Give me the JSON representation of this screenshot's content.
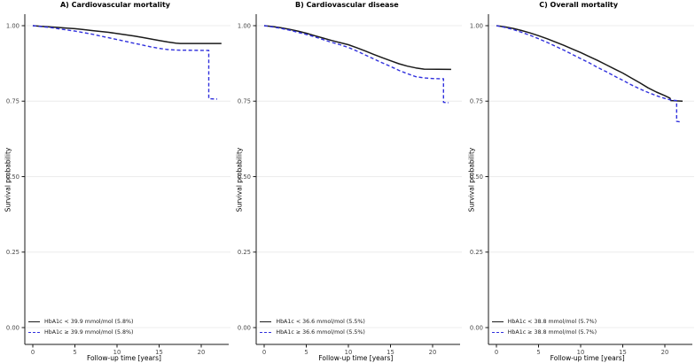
{
  "figure_name": "Kaplan-Meier survival curves by HbA1c group",
  "colors": {
    "low_group_line": "#1a1a1a",
    "high_group_line": "#3030dd",
    "gridline": "#ececec",
    "axis_line": "#1a1a1a",
    "tick_text": "#4a4a4a",
    "background": "#ffffff"
  },
  "chart_data": [
    {
      "type": "line",
      "title": "A) Cardiovascular mortality",
      "xlabel": "Follow-up time [years]",
      "ylabel": "Survival probability",
      "xlim": [
        -1,
        23.3
      ],
      "ylim": [
        -0.055,
        1.035
      ],
      "xticks": [
        0,
        5,
        10,
        15,
        20
      ],
      "xtick_labels": [
        "0",
        "5",
        "10",
        "15",
        "20"
      ],
      "yticks": [
        0,
        0.25,
        0.5,
        0.75,
        1
      ],
      "ytick_labels": [
        "0.00",
        "0.25",
        "0.50",
        "0.75",
        "1.00"
      ],
      "grid": "horizontal-only",
      "legend_position": "bottom-left",
      "series": [
        {
          "name": "HbA1c < 39.9 mmol/mol (5.8%)",
          "color": "#1a1a1a",
          "style": "solid",
          "points": [
            [
              0,
              1.0
            ],
            [
              1,
              0.998
            ],
            [
              2,
              0.996
            ],
            [
              3,
              0.994
            ],
            [
              4,
              0.992
            ],
            [
              5,
              0.99
            ],
            [
              6,
              0.987
            ],
            [
              7,
              0.984
            ],
            [
              8,
              0.981
            ],
            [
              9,
              0.978
            ],
            [
              10,
              0.974
            ],
            [
              11,
              0.97
            ],
            [
              12,
              0.966
            ],
            [
              13,
              0.961
            ],
            [
              14,
              0.956
            ],
            [
              15,
              0.951
            ],
            [
              16,
              0.946
            ],
            [
              17,
              0.942
            ],
            [
              17.5,
              0.941
            ],
            [
              22.4,
              0.941
            ]
          ]
        },
        {
          "name": "HbA1c ≥ 39.9 mmol/mol (5.8%)",
          "color": "#3030dd",
          "style": "dashed",
          "points": [
            [
              0,
              1.0
            ],
            [
              1,
              0.997
            ],
            [
              2,
              0.994
            ],
            [
              3,
              0.99
            ],
            [
              4,
              0.986
            ],
            [
              5,
              0.982
            ],
            [
              6,
              0.977
            ],
            [
              7,
              0.972
            ],
            [
              8,
              0.966
            ],
            [
              9,
              0.96
            ],
            [
              10,
              0.954
            ],
            [
              11,
              0.948
            ],
            [
              12,
              0.942
            ],
            [
              13,
              0.936
            ],
            [
              14,
              0.93
            ],
            [
              15,
              0.925
            ],
            [
              16,
              0.921
            ],
            [
              17,
              0.919
            ],
            [
              20.9,
              0.918
            ],
            [
              20.9,
              0.758
            ],
            [
              21.9,
              0.757
            ]
          ]
        }
      ]
    },
    {
      "type": "line",
      "title": "B) Cardiovascular disease",
      "xlabel": "Follow-up time [years]",
      "ylabel": "Survival probability",
      "xlim": [
        -1,
        23.3
      ],
      "ylim": [
        -0.055,
        1.035
      ],
      "xticks": [
        0,
        5,
        10,
        15,
        20
      ],
      "xtick_labels": [
        "0",
        "5",
        "10",
        "15",
        "20"
      ],
      "yticks": [
        0,
        0.25,
        0.5,
        0.75,
        1
      ],
      "ytick_labels": [
        "0.00",
        "0.25",
        "0.50",
        "0.75",
        "1.00"
      ],
      "grid": "horizontal-only",
      "legend_position": "bottom-left",
      "series": [
        {
          "name": "HbA1c < 36.6 mmol/mol (5.5%)",
          "color": "#1a1a1a",
          "style": "solid",
          "points": [
            [
              0,
              1.0
            ],
            [
              1,
              0.997
            ],
            [
              2,
              0.993
            ],
            [
              3,
              0.988
            ],
            [
              4,
              0.982
            ],
            [
              5,
              0.975
            ],
            [
              6,
              0.967
            ],
            [
              7,
              0.959
            ],
            [
              8,
              0.951
            ],
            [
              9,
              0.944
            ],
            [
              10,
              0.937
            ],
            [
              11,
              0.927
            ],
            [
              12,
              0.916
            ],
            [
              13,
              0.905
            ],
            [
              14,
              0.894
            ],
            [
              15,
              0.884
            ],
            [
              16,
              0.874
            ],
            [
              17,
              0.866
            ],
            [
              18,
              0.86
            ],
            [
              19,
              0.856
            ],
            [
              22.2,
              0.855
            ]
          ]
        },
        {
          "name": "HbA1c ≥ 36.6 mmol/mol (5.5%)",
          "color": "#3030dd",
          "style": "dashed",
          "points": [
            [
              0,
              1.0
            ],
            [
              1,
              0.996
            ],
            [
              2,
              0.991
            ],
            [
              3,
              0.985
            ],
            [
              4,
              0.978
            ],
            [
              5,
              0.971
            ],
            [
              6,
              0.963
            ],
            [
              7,
              0.954
            ],
            [
              8,
              0.945
            ],
            [
              9,
              0.937
            ],
            [
              10,
              0.928
            ],
            [
              11,
              0.916
            ],
            [
              12,
              0.903
            ],
            [
              13,
              0.89
            ],
            [
              14,
              0.877
            ],
            [
              15,
              0.865
            ],
            [
              16,
              0.852
            ],
            [
              17,
              0.841
            ],
            [
              18,
              0.831
            ],
            [
              19,
              0.827
            ],
            [
              20,
              0.825
            ],
            [
              21.3,
              0.824
            ],
            [
              21.3,
              0.746
            ],
            [
              21.9,
              0.745
            ]
          ]
        }
      ]
    },
    {
      "type": "line",
      "title": "C) Overall mortality",
      "xlabel": "Follow-up time [years]",
      "ylabel": "Survival probability",
      "xlim": [
        -1,
        23.3
      ],
      "ylim": [
        -0.055,
        1.035
      ],
      "xticks": [
        0,
        5,
        10,
        15,
        20
      ],
      "xtick_labels": [
        "0",
        "5",
        "10",
        "15",
        "20"
      ],
      "yticks": [
        0,
        0.25,
        0.5,
        0.75,
        1
      ],
      "ytick_labels": [
        "0.00",
        "0.25",
        "0.50",
        "0.75",
        "1.00"
      ],
      "grid": "horizontal-only",
      "legend_position": "bottom-left",
      "series": [
        {
          "name": "HbA1c < 38.8 mmol/mol (5.7%)",
          "color": "#1a1a1a",
          "style": "solid",
          "points": [
            [
              0,
              1.0
            ],
            [
              1,
              0.996
            ],
            [
              2,
              0.991
            ],
            [
              3,
              0.984
            ],
            [
              4,
              0.976
            ],
            [
              5,
              0.967
            ],
            [
              6,
              0.957
            ],
            [
              7,
              0.946
            ],
            [
              8,
              0.935
            ],
            [
              9,
              0.923
            ],
            [
              10,
              0.911
            ],
            [
              11,
              0.898
            ],
            [
              12,
              0.885
            ],
            [
              13,
              0.871
            ],
            [
              14,
              0.857
            ],
            [
              15,
              0.843
            ],
            [
              16,
              0.827
            ],
            [
              17,
              0.811
            ],
            [
              18,
              0.794
            ],
            [
              19,
              0.78
            ],
            [
              20,
              0.768
            ],
            [
              20.6,
              0.76
            ],
            [
              20.7,
              0.752
            ],
            [
              22.1,
              0.75
            ]
          ]
        },
        {
          "name": "HbA1c ≥ 38.8 mmol/mol (5.7%)",
          "color": "#3030dd",
          "style": "dashed",
          "points": [
            [
              0,
              1.0
            ],
            [
              1,
              0.994
            ],
            [
              2,
              0.987
            ],
            [
              3,
              0.978
            ],
            [
              4,
              0.968
            ],
            [
              5,
              0.957
            ],
            [
              6,
              0.945
            ],
            [
              7,
              0.932
            ],
            [
              8,
              0.919
            ],
            [
              9,
              0.905
            ],
            [
              10,
              0.891
            ],
            [
              11,
              0.877
            ],
            [
              12,
              0.862
            ],
            [
              13,
              0.848
            ],
            [
              14,
              0.833
            ],
            [
              15,
              0.819
            ],
            [
              16,
              0.804
            ],
            [
              17,
              0.791
            ],
            [
              18,
              0.779
            ],
            [
              19,
              0.768
            ],
            [
              20,
              0.759
            ],
            [
              20.8,
              0.753
            ],
            [
              21.4,
              0.752
            ],
            [
              21.4,
              0.683
            ],
            [
              22.0,
              0.681
            ]
          ]
        }
      ]
    }
  ]
}
